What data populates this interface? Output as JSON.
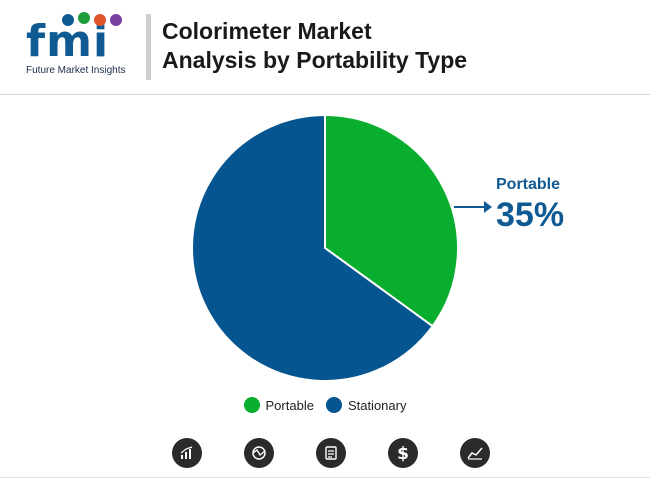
{
  "brand": {
    "logo_text": "fmi",
    "caption": "Future Market Insights",
    "dot_colors": [
      "#0f5a93",
      "#1f9e3d",
      "#e0542c",
      "#7b3f9e"
    ]
  },
  "header": {
    "title_line1": "Colorimeter Market",
    "title_line2": "Analysis by Portability Type"
  },
  "callout": {
    "label": "Portable",
    "value": "35%"
  },
  "legend": [
    {
      "label": "Portable",
      "color": "#09ae2e"
    },
    {
      "label": "Stationary",
      "color": "#055590"
    }
  ],
  "footer_icons": [
    "bar-chart-icon",
    "globe-chart-icon",
    "document-icon",
    "dollar-icon",
    "trend-chart-icon"
  ],
  "chart_data": {
    "type": "pie",
    "title": "Colorimeter Market Analysis by Portability Type",
    "slices": [
      {
        "label": "Portable",
        "value": 35,
        "color": "#09ae2e"
      },
      {
        "label": "Stationary",
        "value": 65,
        "color": "#055590"
      }
    ],
    "start_angle_deg": 0,
    "direction": "clockwise",
    "legend_position": "bottom",
    "annotations": [
      {
        "label": "Portable",
        "value": "35%",
        "position": "right"
      }
    ]
  }
}
